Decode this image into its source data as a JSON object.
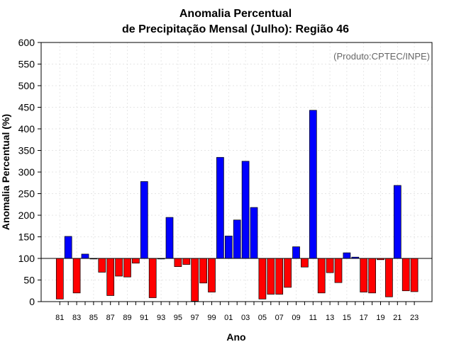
{
  "chart_data": {
    "type": "bar",
    "title_line1": "Anomalia Percentual",
    "title_line2": "de Precipitação Mensal (Julho): Região 46",
    "xlabel": "Ano",
    "ylabel": "Anomalia Percentual (%)",
    "annotation": "(Produto:CPTEC/INPE)",
    "baseline": 100,
    "ylim": [
      0,
      600
    ],
    "yticks": [
      0,
      50,
      100,
      150,
      200,
      250,
      300,
      350,
      400,
      450,
      500,
      550,
      600
    ],
    "years": [
      1981,
      1982,
      1983,
      1984,
      1985,
      1986,
      1987,
      1988,
      1989,
      1990,
      1991,
      1992,
      1993,
      1994,
      1995,
      1996,
      1997,
      1998,
      1999,
      2000,
      2001,
      2002,
      2003,
      2004,
      2005,
      2006,
      2007,
      2008,
      2009,
      2010,
      2011,
      2012,
      2013,
      2014,
      2015,
      2016,
      2017,
      2018,
      2019,
      2020,
      2021,
      2022,
      2023
    ],
    "values": [
      6,
      151,
      20,
      110,
      99,
      68,
      14,
      59,
      57,
      89,
      278,
      9,
      100,
      195,
      81,
      86,
      1,
      43,
      22,
      334,
      152,
      189,
      325,
      218,
      6,
      17,
      17,
      33,
      127,
      80,
      443,
      20,
      67,
      44,
      113,
      103,
      22,
      20,
      97,
      11,
      269,
      25,
      23
    ],
    "xtick_labels": [
      "81",
      "83",
      "85",
      "87",
      "89",
      "91",
      "93",
      "95",
      "97",
      "99",
      "01",
      "03",
      "05",
      "07",
      "09",
      "11",
      "13",
      "15",
      "17",
      "19",
      "21",
      "23"
    ],
    "colors": {
      "above": "#0000ff",
      "below": "#ff0000"
    },
    "grid": true
  }
}
